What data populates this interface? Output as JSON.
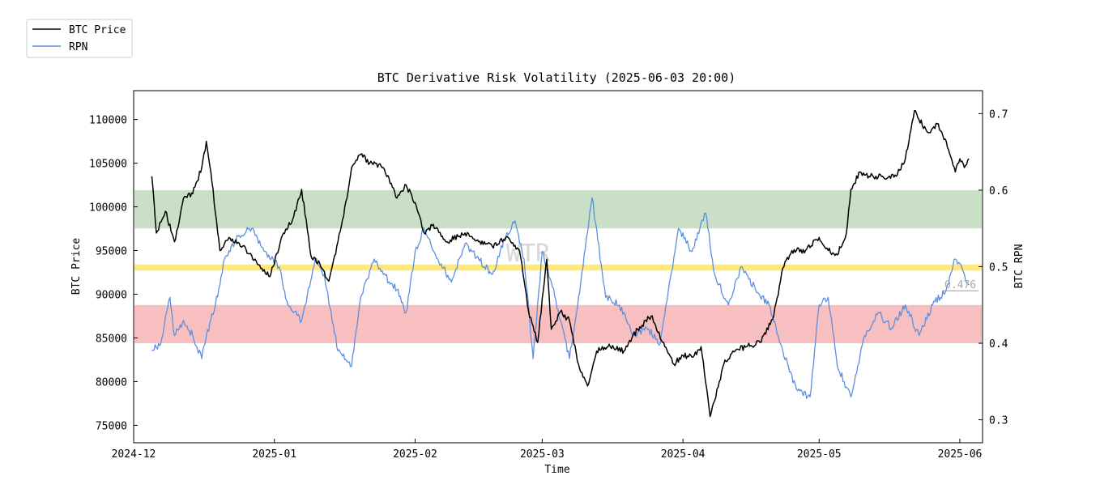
{
  "chart_data": {
    "type": "line",
    "title": "BTC Derivative Risk Volatility (2025-06-03 20:00)",
    "xlabel": "Time",
    "ylabel_left": "BTC Price",
    "ylabel_right": "BTC RPN",
    "watermark": "WTR",
    "x_range": [
      "2024-12-01",
      "2025-06-06"
    ],
    "x_ticks": [
      {
        "date": "2024-12-01",
        "label": "2024-12"
      },
      {
        "date": "2025-01-01",
        "label": "2025-01"
      },
      {
        "date": "2025-02-01",
        "label": "2025-02"
      },
      {
        "date": "2025-03-01",
        "label": "2025-03"
      },
      {
        "date": "2025-04-01",
        "label": "2025-04"
      },
      {
        "date": "2025-05-01",
        "label": "2025-05"
      },
      {
        "date": "2025-06-01",
        "label": "2025-06"
      }
    ],
    "y_left": {
      "min": 73000,
      "max": 113300,
      "ticks": [
        75000,
        80000,
        85000,
        90000,
        95000,
        100000,
        105000,
        110000
      ]
    },
    "y_right": {
      "min": 0.27,
      "max": 0.73,
      "ticks": [
        0.3,
        0.4,
        0.5,
        0.6,
        0.7
      ]
    },
    "bands": [
      {
        "name": "high-band",
        "from": 0.55,
        "to": 0.6,
        "color": "#c9dfc6"
      },
      {
        "name": "mid-line",
        "from": 0.495,
        "to": 0.503,
        "color": "#ffe97a"
      },
      {
        "name": "low-band",
        "from": 0.4,
        "to": 0.45,
        "color": "#f7bfbf"
      }
    ],
    "last_value_label": "0.476",
    "legend": [
      {
        "label": "BTC Price",
        "color": "#000000"
      },
      {
        "label": "RPN",
        "color": "#5b8fe0"
      }
    ],
    "series": [
      {
        "name": "BTC Price",
        "axis": "left",
        "color": "#000000",
        "x": [
          "2024-12-05",
          "2024-12-06",
          "2024-12-08",
          "2024-12-10",
          "2024-12-12",
          "2024-12-14",
          "2024-12-16",
          "2024-12-17",
          "2024-12-18",
          "2024-12-20",
          "2024-12-22",
          "2024-12-25",
          "2024-12-28",
          "2024-12-31",
          "2025-01-03",
          "2025-01-05",
          "2025-01-07",
          "2025-01-09",
          "2025-01-11",
          "2025-01-13",
          "2025-01-15",
          "2025-01-17",
          "2025-01-18",
          "2025-01-20",
          "2025-01-22",
          "2025-01-25",
          "2025-01-28",
          "2025-01-30",
          "2025-02-01",
          "2025-02-03",
          "2025-02-05",
          "2025-02-08",
          "2025-02-12",
          "2025-02-15",
          "2025-02-18",
          "2025-02-21",
          "2025-02-24",
          "2025-02-26",
          "2025-02-28",
          "2025-03-02",
          "2025-03-03",
          "2025-03-05",
          "2025-03-07",
          "2025-03-09",
          "2025-03-11",
          "2025-03-13",
          "2025-03-16",
          "2025-03-19",
          "2025-03-22",
          "2025-03-25",
          "2025-03-28",
          "2025-03-30",
          "2025-04-01",
          "2025-04-03",
          "2025-04-05",
          "2025-04-07",
          "2025-04-09",
          "2025-04-10",
          "2025-04-12",
          "2025-04-15",
          "2025-04-18",
          "2025-04-21",
          "2025-04-23",
          "2025-04-25",
          "2025-04-28",
          "2025-05-01",
          "2025-05-03",
          "2025-05-05",
          "2025-05-07",
          "2025-05-08",
          "2025-05-10",
          "2025-05-12",
          "2025-05-15",
          "2025-05-18",
          "2025-05-20",
          "2025-05-22",
          "2025-05-23",
          "2025-05-25",
          "2025-05-27",
          "2025-05-29",
          "2025-05-31",
          "2025-06-01",
          "2025-06-02",
          "2025-06-03"
        ],
        "values": [
          103500,
          97000,
          99500,
          96000,
          101000,
          101500,
          104500,
          107500,
          104000,
          95000,
          96500,
          95500,
          93800,
          92000,
          97000,
          98500,
          102000,
          94500,
          93500,
          91500,
          96000,
          101000,
          104500,
          106000,
          105000,
          104500,
          101000,
          102500,
          100500,
          97000,
          98000,
          96000,
          97000,
          96000,
          95500,
          96500,
          95000,
          88000,
          84500,
          94000,
          86000,
          88000,
          87000,
          82000,
          79500,
          83500,
          84000,
          83500,
          86000,
          87500,
          84000,
          82000,
          83000,
          82800,
          84000,
          76000,
          80000,
          82000,
          83500,
          84000,
          84500,
          87500,
          93000,
          95000,
          95000,
          96500,
          95000,
          94500,
          97000,
          102000,
          104000,
          103500,
          103500,
          103500,
          105500,
          111000,
          110000,
          108500,
          109500,
          107500,
          104000,
          105500,
          104500,
          105500
        ]
      },
      {
        "name": "RPN",
        "axis": "right",
        "color": "#5b8fe0",
        "x": [
          "2024-12-05",
          "2024-12-07",
          "2024-12-09",
          "2024-12-10",
          "2024-12-12",
          "2024-12-14",
          "2024-12-16",
          "2024-12-17",
          "2024-12-19",
          "2024-12-21",
          "2024-12-24",
          "2024-12-27",
          "2024-12-30",
          "2025-01-02",
          "2025-01-04",
          "2025-01-07",
          "2025-01-10",
          "2025-01-12",
          "2025-01-15",
          "2025-01-18",
          "2025-01-20",
          "2025-01-23",
          "2025-01-25",
          "2025-01-28",
          "2025-01-30",
          "2025-02-01",
          "2025-02-03",
          "2025-02-06",
          "2025-02-09",
          "2025-02-12",
          "2025-02-15",
          "2025-02-18",
          "2025-02-21",
          "2025-02-23",
          "2025-02-25",
          "2025-02-27",
          "2025-03-01",
          "2025-03-03",
          "2025-03-05",
          "2025-03-07",
          "2025-03-09",
          "2025-03-12",
          "2025-03-15",
          "2025-03-18",
          "2025-03-21",
          "2025-03-24",
          "2025-03-27",
          "2025-03-31",
          "2025-04-03",
          "2025-04-06",
          "2025-04-08",
          "2025-04-11",
          "2025-04-14",
          "2025-04-17",
          "2025-04-20",
          "2025-04-23",
          "2025-04-26",
          "2025-04-29",
          "2025-05-01",
          "2025-05-03",
          "2025-05-05",
          "2025-05-08",
          "2025-05-11",
          "2025-05-14",
          "2025-05-17",
          "2025-05-20",
          "2025-05-23",
          "2025-05-26",
          "2025-05-29",
          "2025-05-31",
          "2025-06-02",
          "2025-06-03"
        ],
        "values": [
          0.39,
          0.4,
          0.46,
          0.41,
          0.43,
          0.41,
          0.38,
          0.41,
          0.45,
          0.51,
          0.54,
          0.55,
          0.52,
          0.5,
          0.45,
          0.43,
          0.51,
          0.49,
          0.39,
          0.37,
          0.46,
          0.51,
          0.49,
          0.47,
          0.44,
          0.52,
          0.55,
          0.51,
          0.48,
          0.53,
          0.51,
          0.49,
          0.54,
          0.56,
          0.51,
          0.38,
          0.52,
          0.48,
          0.43,
          0.38,
          0.46,
          0.59,
          0.46,
          0.45,
          0.41,
          0.42,
          0.4,
          0.55,
          0.52,
          0.57,
          0.49,
          0.45,
          0.5,
          0.47,
          0.45,
          0.39,
          0.34,
          0.33,
          0.45,
          0.46,
          0.37,
          0.33,
          0.41,
          0.44,
          0.42,
          0.45,
          0.41,
          0.45,
          0.47,
          0.51,
          0.49,
          0.476
        ]
      }
    ]
  }
}
